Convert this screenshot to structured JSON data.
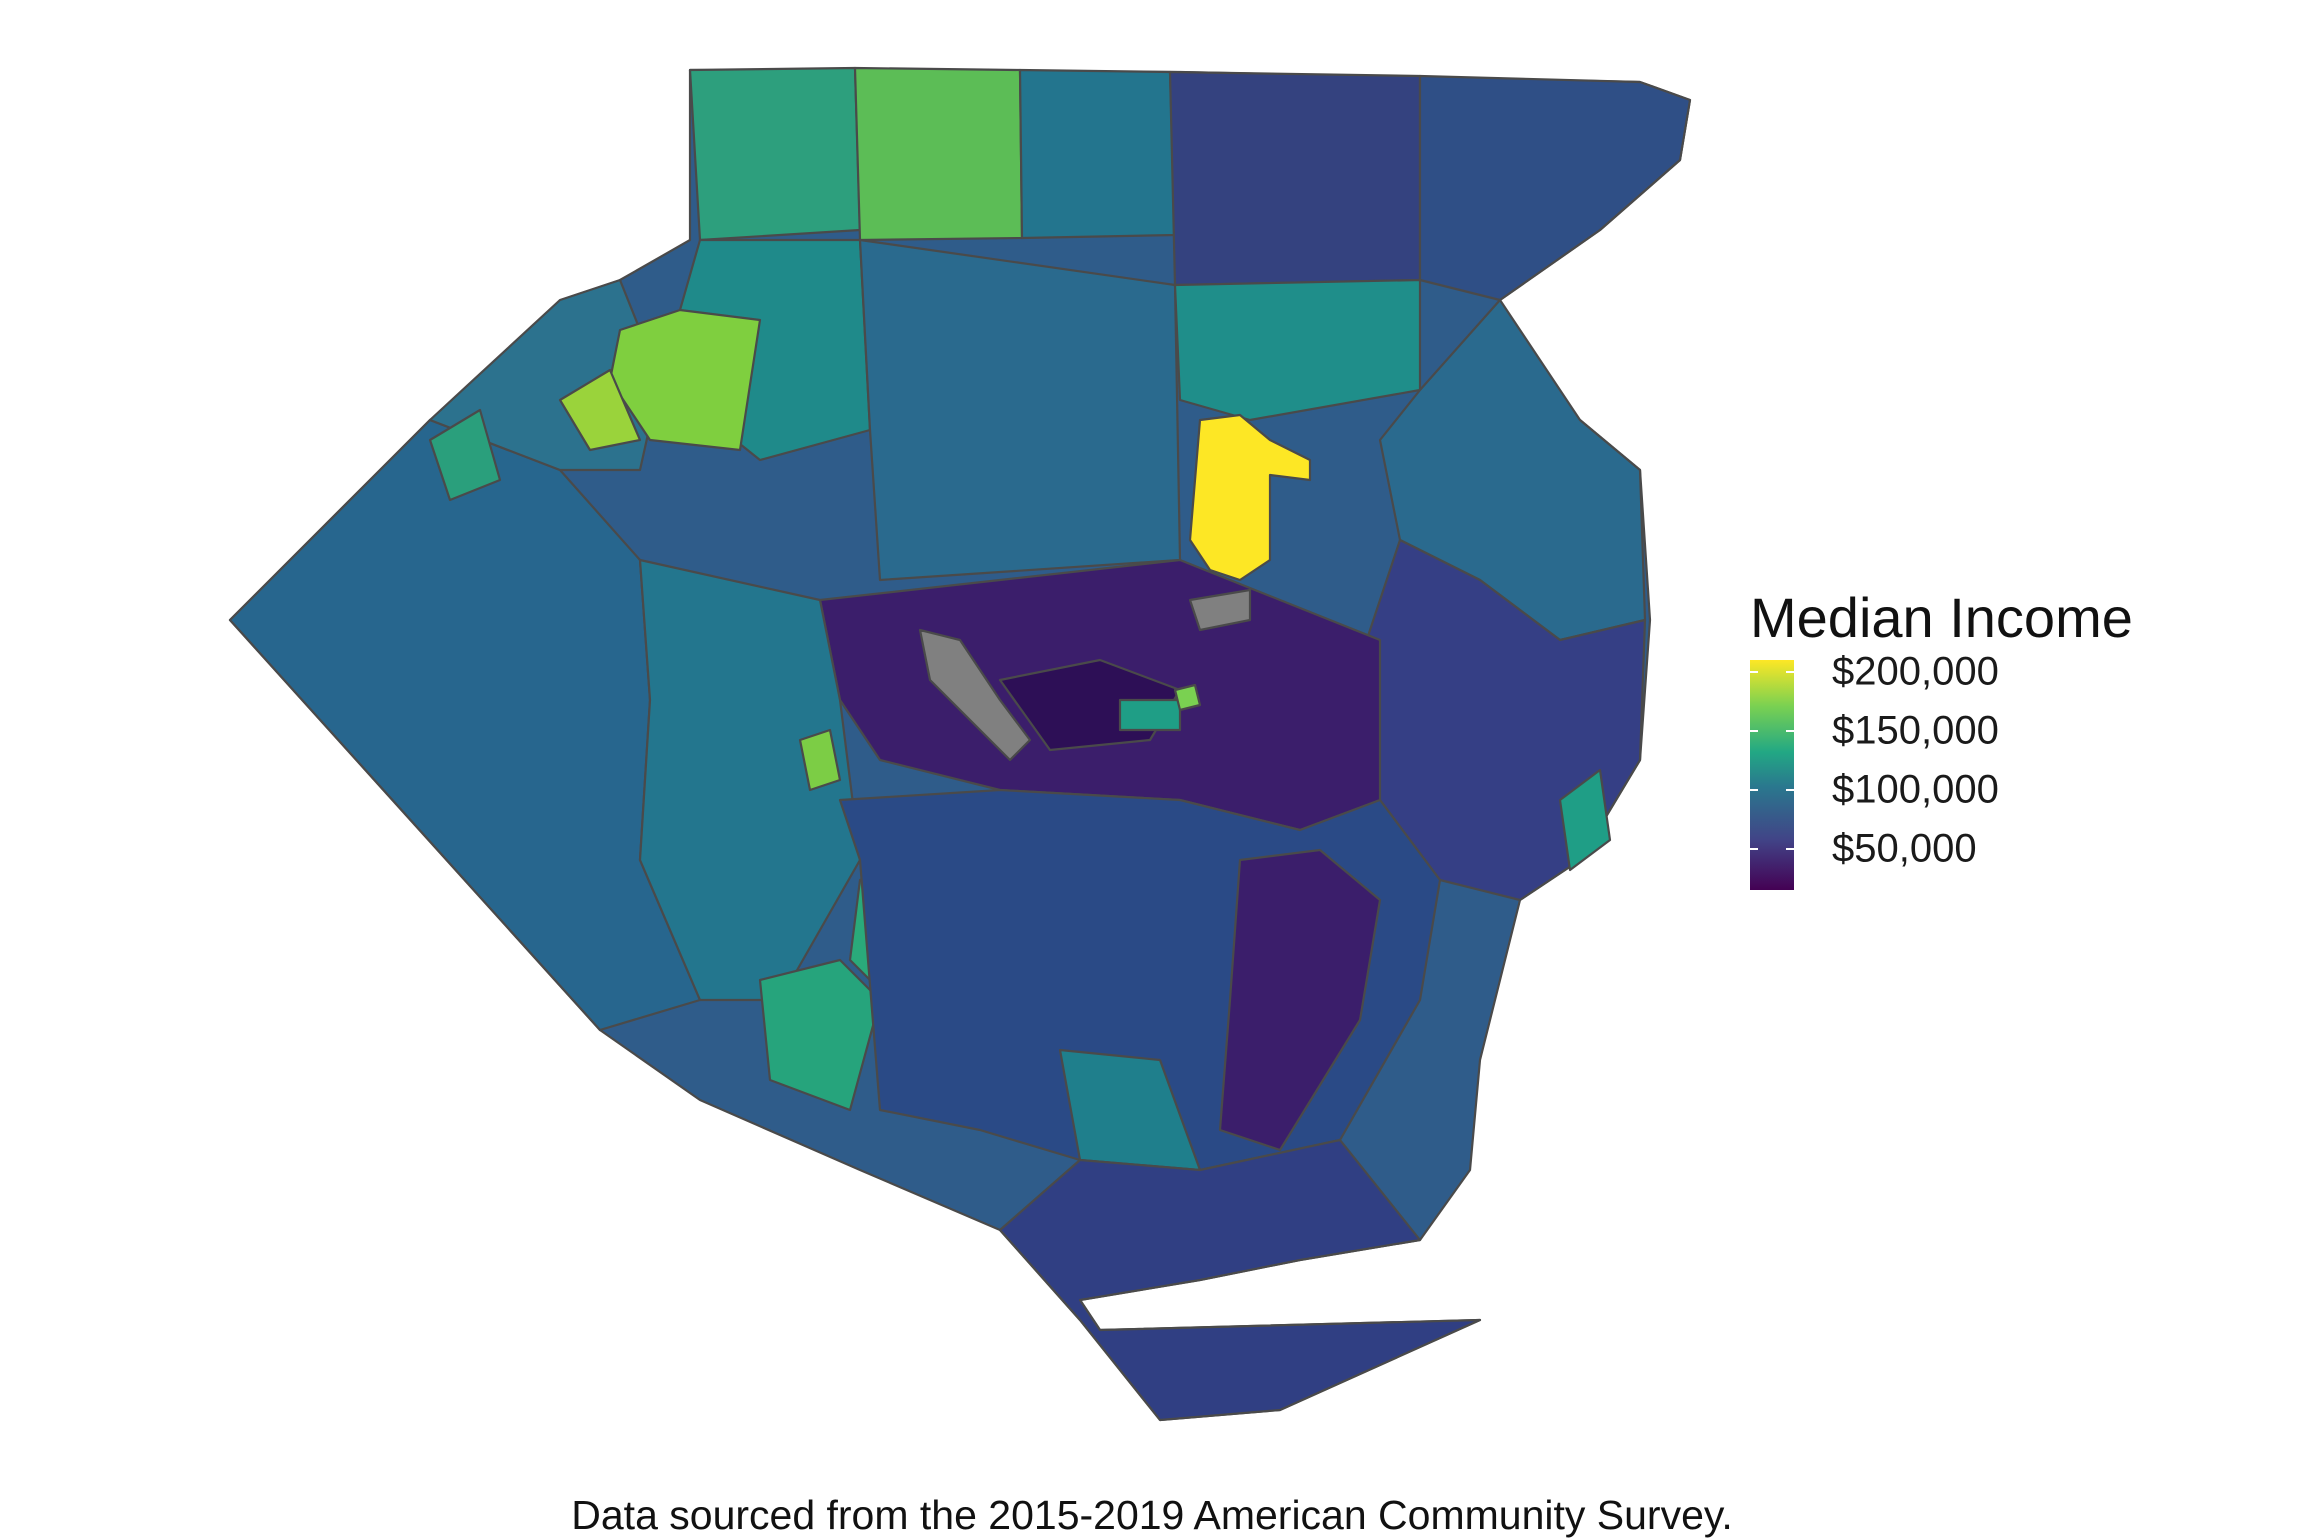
{
  "map": {
    "caption": "Data sourced from the 2015-2019 American Community Survey.",
    "no_data_color": "#808080",
    "border_color": "#4a4a4a"
  },
  "legend": {
    "title": "Median Income",
    "ticks": [
      {
        "label": "$200,000",
        "value": 200000
      },
      {
        "label": "$150,000",
        "value": 150000
      },
      {
        "label": "$100,000",
        "value": 100000
      },
      {
        "label": "$50,000",
        "value": 50000
      }
    ],
    "range": [
      15000,
      210000
    ],
    "palette": "viridis",
    "colors": {
      "high": "#fde725",
      "mid_high": "#7ad151",
      "mid": "#22a884",
      "mid_low": "#2a788e",
      "low": "#414487",
      "lowest": "#440154"
    }
  }
}
